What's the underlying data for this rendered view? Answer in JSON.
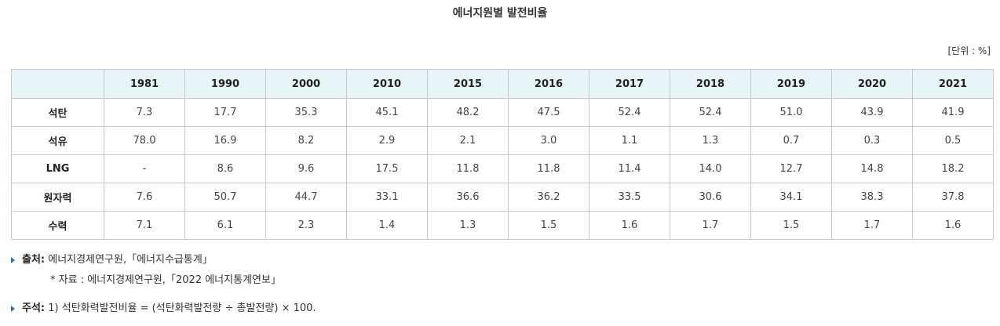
{
  "title": "에너지원별 발전비율",
  "unit": "[단위 : %]",
  "table": {
    "headers": [
      "",
      "1981",
      "1990",
      "2000",
      "2010",
      "2015",
      "2016",
      "2017",
      "2018",
      "2019",
      "2020",
      "2021"
    ],
    "rows": [
      {
        "label": "석탄",
        "values": [
          "7.3",
          "17.7",
          "35.3",
          "45.1",
          "48.2",
          "47.5",
          "52.4",
          "52.4",
          "51.0",
          "43.9",
          "41.9"
        ]
      },
      {
        "label": "석유",
        "values": [
          "78.0",
          "16.9",
          "8.2",
          "2.9",
          "2.1",
          "3.0",
          "1.1",
          "1.3",
          "0.7",
          "0.3",
          "0.5"
        ]
      },
      {
        "label": "LNG",
        "values": [
          "-",
          "8.6",
          "9.6",
          "17.5",
          "11.8",
          "11.8",
          "11.4",
          "14.0",
          "12.7",
          "14.8",
          "18.2"
        ]
      },
      {
        "label": "원자력",
        "values": [
          "7.6",
          "50.7",
          "44.7",
          "33.1",
          "36.6",
          "36.2",
          "33.5",
          "30.6",
          "34.1",
          "38.3",
          "37.8"
        ]
      },
      {
        "label": "수력",
        "values": [
          "7.1",
          "6.1",
          "2.3",
          "1.4",
          "1.3",
          "1.5",
          "1.6",
          "1.7",
          "1.5",
          "1.7",
          "1.6"
        ]
      }
    ]
  },
  "notes": {
    "source_label": "출처:",
    "source_text": "에너지경제연구원,「에너지수급통계」",
    "source_sub": "* 자료 : 에너지경제연구원,「2022 에너지통계연보」",
    "remark_label": "주석:",
    "remark_text": "1) 석탄화력발전비율 = (석탄화력발전량 ÷ 총발전량) × 100."
  }
}
